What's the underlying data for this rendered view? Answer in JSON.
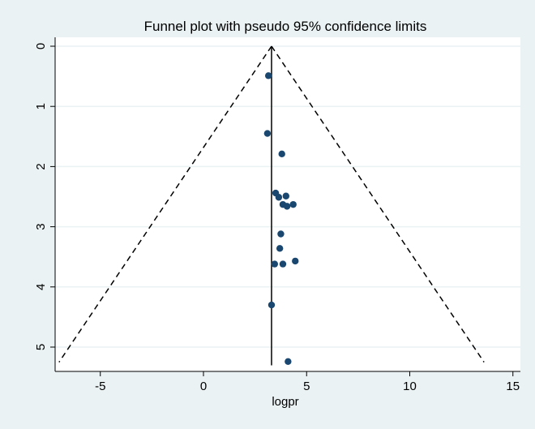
{
  "chart_data": {
    "type": "scatter",
    "title": "Funnel plot with pseudo 95% confidence limits",
    "xlabel": "logpr",
    "ylabel": "",
    "xlim": [
      -7.5,
      15.2
    ],
    "ylim": [
      0,
      5.4
    ],
    "y_reversed": true,
    "x_ticks": [
      -5,
      0,
      5,
      10,
      15
    ],
    "y_ticks": [
      0,
      1,
      2,
      3,
      4,
      5
    ],
    "x_tick_labels": [
      "-5",
      "0",
      "5",
      "10",
      "15"
    ],
    "y_tick_labels": [
      "0",
      "1",
      "2",
      "3",
      "4",
      "5"
    ],
    "pooled_estimate": 3.3,
    "ci_limits": {
      "apex": [
        3.3,
        0.0
      ],
      "lower_end": [
        -7.0,
        5.25
      ],
      "upper_end": [
        13.6,
        5.25
      ]
    },
    "points": [
      {
        "x": 3.15,
        "y": 0.49
      },
      {
        "x": 3.1,
        "y": 1.45
      },
      {
        "x": 3.8,
        "y": 1.79
      },
      {
        "x": 3.5,
        "y": 2.44
      },
      {
        "x": 3.65,
        "y": 2.51
      },
      {
        "x": 4.0,
        "y": 2.49
      },
      {
        "x": 3.85,
        "y": 2.63
      },
      {
        "x": 4.05,
        "y": 2.66
      },
      {
        "x": 4.35,
        "y": 2.63
      },
      {
        "x": 3.75,
        "y": 3.12
      },
      {
        "x": 3.7,
        "y": 3.36
      },
      {
        "x": 3.45,
        "y": 3.62
      },
      {
        "x": 3.85,
        "y": 3.62
      },
      {
        "x": 4.45,
        "y": 3.57
      },
      {
        "x": 3.3,
        "y": 4.3
      },
      {
        "x": 4.1,
        "y": 5.24
      }
    ],
    "grid": true,
    "colors": {
      "background": "#eaf2f3",
      "plot_area": "#ffffff",
      "gridline": "#eaf2f3",
      "point": "#1a476f",
      "line": "#000000"
    }
  }
}
